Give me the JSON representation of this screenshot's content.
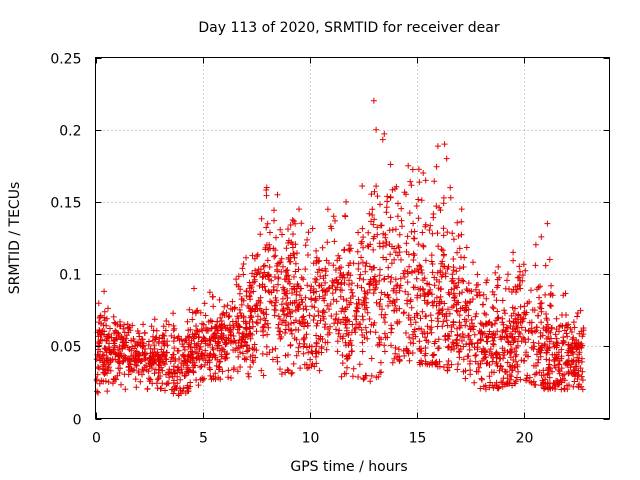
{
  "chart_data": {
    "type": "scatter",
    "title": "Day 113 of 2020, SRMTID for receiver dear",
    "xlabel": "GPS time / hours",
    "ylabel": "SRMTID / TECUs",
    "xlim": [
      0,
      24
    ],
    "ylim": [
      0,
      0.25
    ],
    "xticks": [
      0,
      5,
      10,
      15,
      20
    ],
    "xtick_labels": [
      "0",
      "5",
      "10",
      "15",
      "20"
    ],
    "yticks": [
      0,
      0.05,
      0.1,
      0.15,
      0.2,
      0.25
    ],
    "ytick_labels": [
      "0",
      "0.05",
      "0.1",
      "0.15",
      "0.2",
      "0.25"
    ],
    "grid": true,
    "marker": "+",
    "marker_color": "#e60000",
    "series": [
      {
        "name": "SRMTID",
        "envelope_hours": [
          0,
          1,
          2,
          3,
          4,
          5,
          6,
          7,
          8,
          9,
          10,
          11,
          12,
          13,
          14,
          15,
          16,
          17,
          18,
          19,
          20,
          21,
          22,
          22.8
        ],
        "envelope_median": [
          0.045,
          0.045,
          0.04,
          0.04,
          0.035,
          0.05,
          0.05,
          0.06,
          0.09,
          0.075,
          0.07,
          0.08,
          0.07,
          0.085,
          0.09,
          0.085,
          0.075,
          0.07,
          0.05,
          0.045,
          0.06,
          0.04,
          0.04,
          0.04
        ],
        "envelope_max": [
          0.085,
          0.07,
          0.065,
          0.07,
          0.08,
          0.095,
          0.08,
          0.11,
          0.16,
          0.145,
          0.13,
          0.15,
          0.14,
          0.22,
          0.175,
          0.175,
          0.19,
          0.145,
          0.095,
          0.11,
          0.115,
          0.135,
          0.085,
          0.075
        ],
        "envelope_min": [
          0.015,
          0.02,
          0.015,
          0.02,
          0.015,
          0.025,
          0.025,
          0.025,
          0.03,
          0.03,
          0.035,
          0.03,
          0.025,
          0.025,
          0.04,
          0.035,
          0.035,
          0.03,
          0.02,
          0.02,
          0.025,
          0.02,
          0.02,
          0.02
        ],
        "peaks": [
          {
            "x": 13.0,
            "y": 0.22
          },
          {
            "x": 13.1,
            "y": 0.2
          },
          {
            "x": 16.3,
            "y": 0.19
          },
          {
            "x": 16.4,
            "y": 0.18
          },
          {
            "x": 14.6,
            "y": 0.175
          },
          {
            "x": 15.3,
            "y": 0.17
          },
          {
            "x": 8.0,
            "y": 0.16
          },
          {
            "x": 8.5,
            "y": 0.155
          },
          {
            "x": 11.7,
            "y": 0.15
          },
          {
            "x": 17.1,
            "y": 0.145
          },
          {
            "x": 9.5,
            "y": 0.145
          },
          {
            "x": 21.1,
            "y": 0.135
          },
          {
            "x": 19.5,
            "y": 0.115
          },
          {
            "x": 4.6,
            "y": 0.09
          },
          {
            "x": 0.4,
            "y": 0.088
          }
        ]
      }
    ]
  }
}
